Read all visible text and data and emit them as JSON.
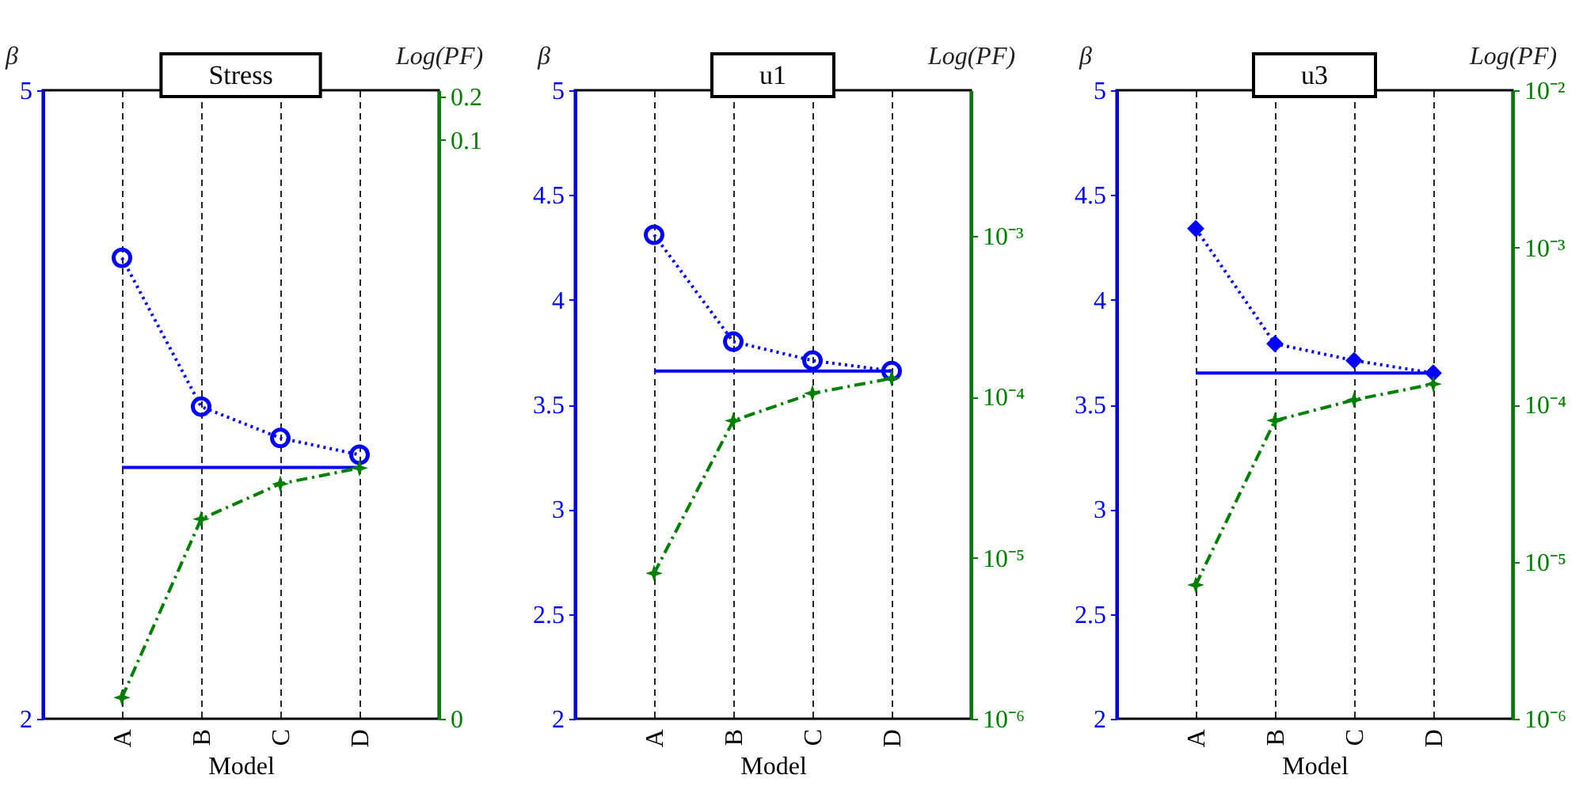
{
  "chart_data": [
    {
      "type": "line",
      "title": "Stress",
      "xlabel": "Model",
      "ylabel": "β",
      "y2label": "Log(PF)",
      "categories": [
        "A",
        "B",
        "C",
        "D"
      ],
      "ylim": [
        2,
        5
      ],
      "yticks": [
        2,
        5
      ],
      "y2lim": [
        1e-05,
        0.22
      ],
      "y2ticks": [
        {
          "value": 1e-05,
          "label": "0"
        },
        0.1,
        0.2
      ],
      "log": "y2",
      "grid": "x",
      "series": [
        {
          "color": "#0000ff",
          "values": [
            4.2,
            3.49,
            3.34,
            3.26
          ],
          "marker": "circle",
          "line_style": "dotted"
        },
        {
          "color": "#0000ff",
          "values": [
            3.2,
            3.2,
            3.2,
            3.2
          ],
          "marker": "none",
          "line_style": "solid"
        },
        {
          "color": "#008000",
          "axis": "y2",
          "values": [
            1.4e-05,
            0.00024,
            0.00042,
            0.00054
          ],
          "marker": "star",
          "line_style": "dashed"
        }
      ]
    },
    {
      "type": "line",
      "title": "u1",
      "xlabel": "Model",
      "ylabel": "β",
      "y2label": "Log(PF)",
      "categories": [
        "A",
        "B",
        "C",
        "D"
      ],
      "ylim": [
        2,
        5
      ],
      "yticks": [
        2,
        2.5,
        3,
        3.5,
        4,
        4.5,
        5
      ],
      "y2lim": [
        1e-06,
        0.008
      ],
      "y2ticks": [
        {
          "value": 1e-06,
          "label": "10⁻⁶"
        },
        {
          "value": 1e-05,
          "label": "10⁻⁵"
        },
        {
          "value": 0.0001,
          "label": "10⁻⁴"
        },
        {
          "value": 0.001,
          "label": "10⁻³"
        }
      ],
      "log": "y2",
      "grid": "x",
      "series": [
        {
          "color": "#0000ff",
          "values": [
            4.31,
            3.8,
            3.71,
            3.66
          ],
          "marker": "circle",
          "line_style": "dotted"
        },
        {
          "color": "#0000ff",
          "values": [
            3.66,
            3.66,
            3.66,
            3.66
          ],
          "marker": "none",
          "line_style": "solid"
        },
        {
          "color": "#008000",
          "axis": "y2",
          "values": [
            8e-06,
            7.1e-05,
            0.000105,
            0.00013
          ],
          "marker": "star",
          "line_style": "dashed"
        }
      ]
    },
    {
      "type": "line",
      "title": "u3",
      "xlabel": "Model",
      "ylabel": "β",
      "y2label": "Log(PF)",
      "categories": [
        "A",
        "B",
        "C",
        "D"
      ],
      "ylim": [
        2,
        5
      ],
      "yticks": [
        2,
        2.5,
        3,
        3.5,
        4,
        4.5,
        5
      ],
      "y2lim": [
        1e-06,
        0.01
      ],
      "y2ticks": [
        {
          "value": 1e-06,
          "label": "10⁻⁶"
        },
        {
          "value": 1e-05,
          "label": "10⁻⁵"
        },
        {
          "value": 0.0001,
          "label": "10⁻⁴"
        },
        {
          "value": 0.001,
          "label": "10⁻³"
        },
        {
          "value": 0.01,
          "label": "10⁻²"
        }
      ],
      "log": "y2",
      "grid": "x",
      "series": [
        {
          "color": "#0000ff",
          "values": [
            4.34,
            3.79,
            3.71,
            3.65
          ],
          "marker": "diamond",
          "line_style": "dotted"
        },
        {
          "color": "#0000ff",
          "values": [
            3.65,
            3.65,
            3.65,
            3.65
          ],
          "marker": "none",
          "line_style": "solid"
        },
        {
          "color": "#008000",
          "axis": "y2",
          "values": [
            7.1e-06,
            7.9e-05,
            0.000107,
            0.000135
          ],
          "marker": "star",
          "line_style": "dashed"
        }
      ]
    }
  ]
}
